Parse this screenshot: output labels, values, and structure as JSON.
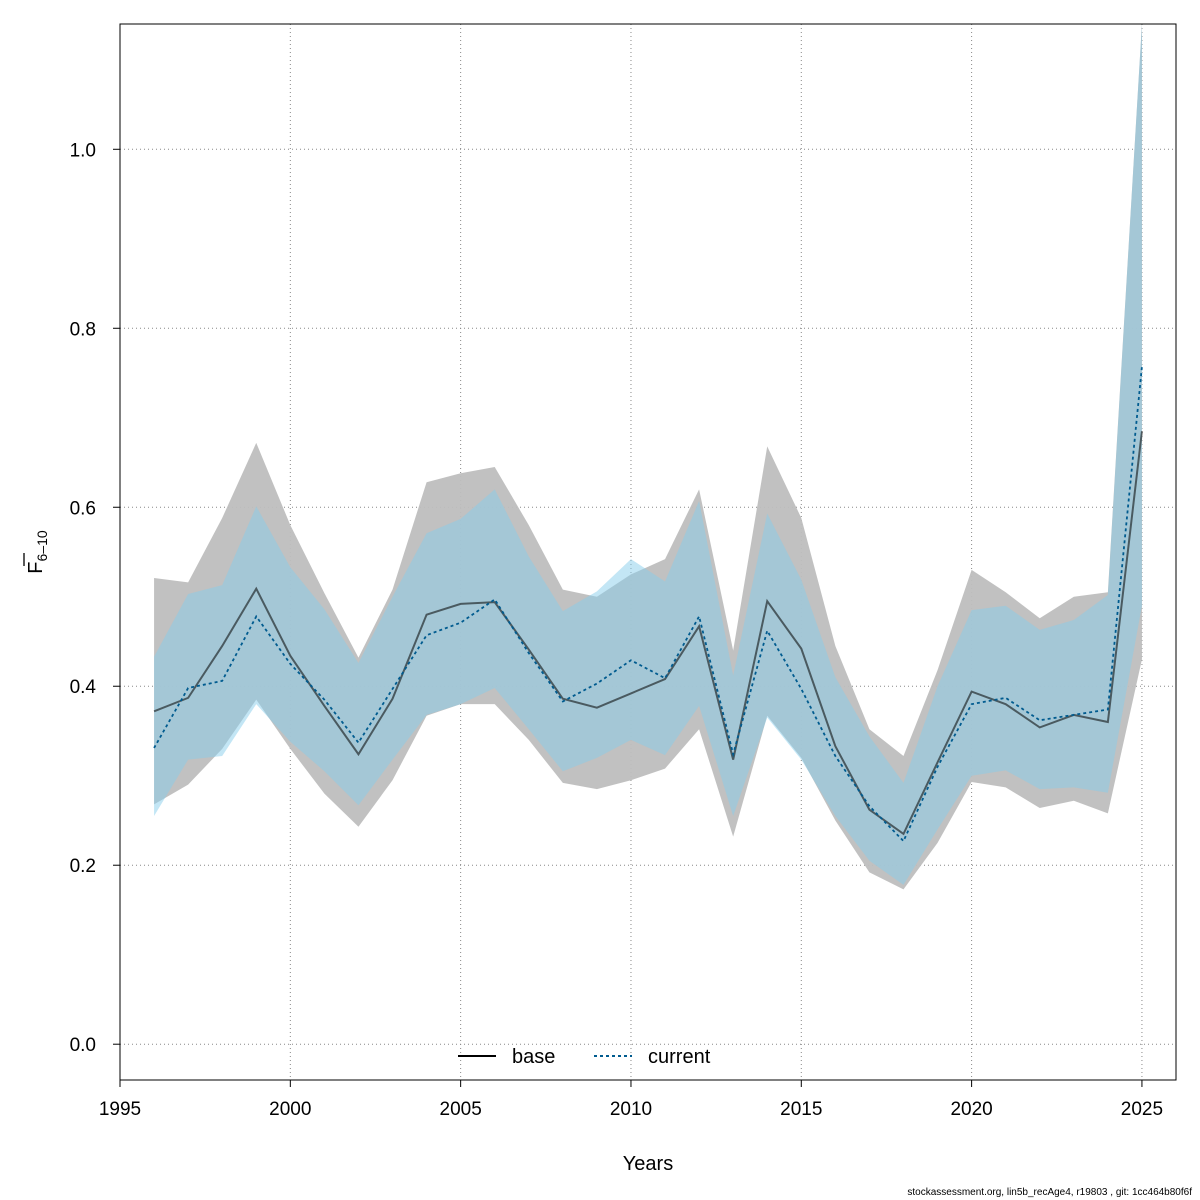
{
  "chart_data": {
    "type": "line",
    "xlabel": "Years",
    "ylabel": {
      "main": "F",
      "sub": "6–10"
    },
    "xlim": [
      1995,
      2026
    ],
    "ylim": [
      -0.04,
      1.14
    ],
    "xticks": [
      1995,
      2000,
      2005,
      2010,
      2015,
      2020,
      2025
    ],
    "yticks": [
      0.0,
      0.2,
      0.4,
      0.6,
      0.8,
      1.0
    ],
    "ytick_labels": [
      "0.0",
      "0.2",
      "0.4",
      "0.6",
      "0.8",
      "1.0"
    ],
    "grid": true,
    "legend_position": "bottom-center",
    "x": [
      1996,
      1997,
      1998,
      1999,
      2000,
      2001,
      2002,
      2003,
      2004,
      2005,
      2006,
      2007,
      2008,
      2009,
      2010,
      2011,
      2012,
      2013,
      2014,
      2015,
      2016,
      2017,
      2018,
      2019,
      2020,
      2021,
      2022,
      2023,
      2024,
      2025
    ],
    "series": [
      {
        "name": "base",
        "color": "#000000",
        "band_color": "#bebebe",
        "line_style": "solid",
        "values": [
          0.372,
          0.387,
          0.445,
          0.509,
          0.434,
          0.378,
          0.324,
          0.386,
          0.48,
          0.492,
          0.494,
          0.441,
          0.386,
          0.376,
          0.392,
          0.408,
          0.467,
          0.318,
          0.495,
          0.442,
          0.333,
          0.262,
          0.235,
          0.315,
          0.394,
          0.38,
          0.354,
          0.368,
          0.36,
          0.685
        ],
        "lower": [
          0.268,
          0.29,
          0.33,
          0.385,
          0.33,
          0.28,
          0.243,
          0.295,
          0.367,
          0.38,
          0.38,
          0.34,
          0.292,
          0.285,
          0.295,
          0.308,
          0.352,
          0.232,
          0.367,
          0.32,
          0.25,
          0.192,
          0.173,
          0.225,
          0.293,
          0.287,
          0.264,
          0.272,
          0.258,
          0.43
        ],
        "upper": [
          0.521,
          0.516,
          0.588,
          0.672,
          0.58,
          0.504,
          0.432,
          0.508,
          0.628,
          0.638,
          0.645,
          0.58,
          0.508,
          0.5,
          0.525,
          0.542,
          0.62,
          0.44,
          0.668,
          0.588,
          0.445,
          0.352,
          0.322,
          0.418,
          0.53,
          0.505,
          0.476,
          0.5,
          0.505,
          1.14
        ]
      },
      {
        "name": "current",
        "color": "#005b8f",
        "band_color": "#87ceeb",
        "line_style": "dotted",
        "values": [
          0.331,
          0.398,
          0.406,
          0.478,
          0.425,
          0.385,
          0.337,
          0.397,
          0.457,
          0.471,
          0.497,
          0.437,
          0.383,
          0.403,
          0.429,
          0.409,
          0.478,
          0.324,
          0.462,
          0.397,
          0.322,
          0.266,
          0.227,
          0.31,
          0.38,
          0.387,
          0.362,
          0.368,
          0.374,
          0.757
        ],
        "lower": [
          0.255,
          0.318,
          0.322,
          0.38,
          0.338,
          0.305,
          0.267,
          0.318,
          0.368,
          0.38,
          0.398,
          0.352,
          0.305,
          0.32,
          0.34,
          0.323,
          0.378,
          0.255,
          0.365,
          0.318,
          0.255,
          0.205,
          0.178,
          0.24,
          0.3,
          0.306,
          0.285,
          0.287,
          0.281,
          0.49
        ],
        "upper": [
          0.433,
          0.503,
          0.513,
          0.601,
          0.533,
          0.486,
          0.426,
          0.5,
          0.571,
          0.587,
          0.62,
          0.545,
          0.484,
          0.506,
          0.542,
          0.517,
          0.607,
          0.412,
          0.593,
          0.519,
          0.41,
          0.344,
          0.292,
          0.4,
          0.485,
          0.49,
          0.463,
          0.474,
          0.502,
          1.14
        ]
      }
    ]
  },
  "footer": "stockassessment.org, lin5b_recAge4, r19803 , git: 1cc464b80f6f"
}
